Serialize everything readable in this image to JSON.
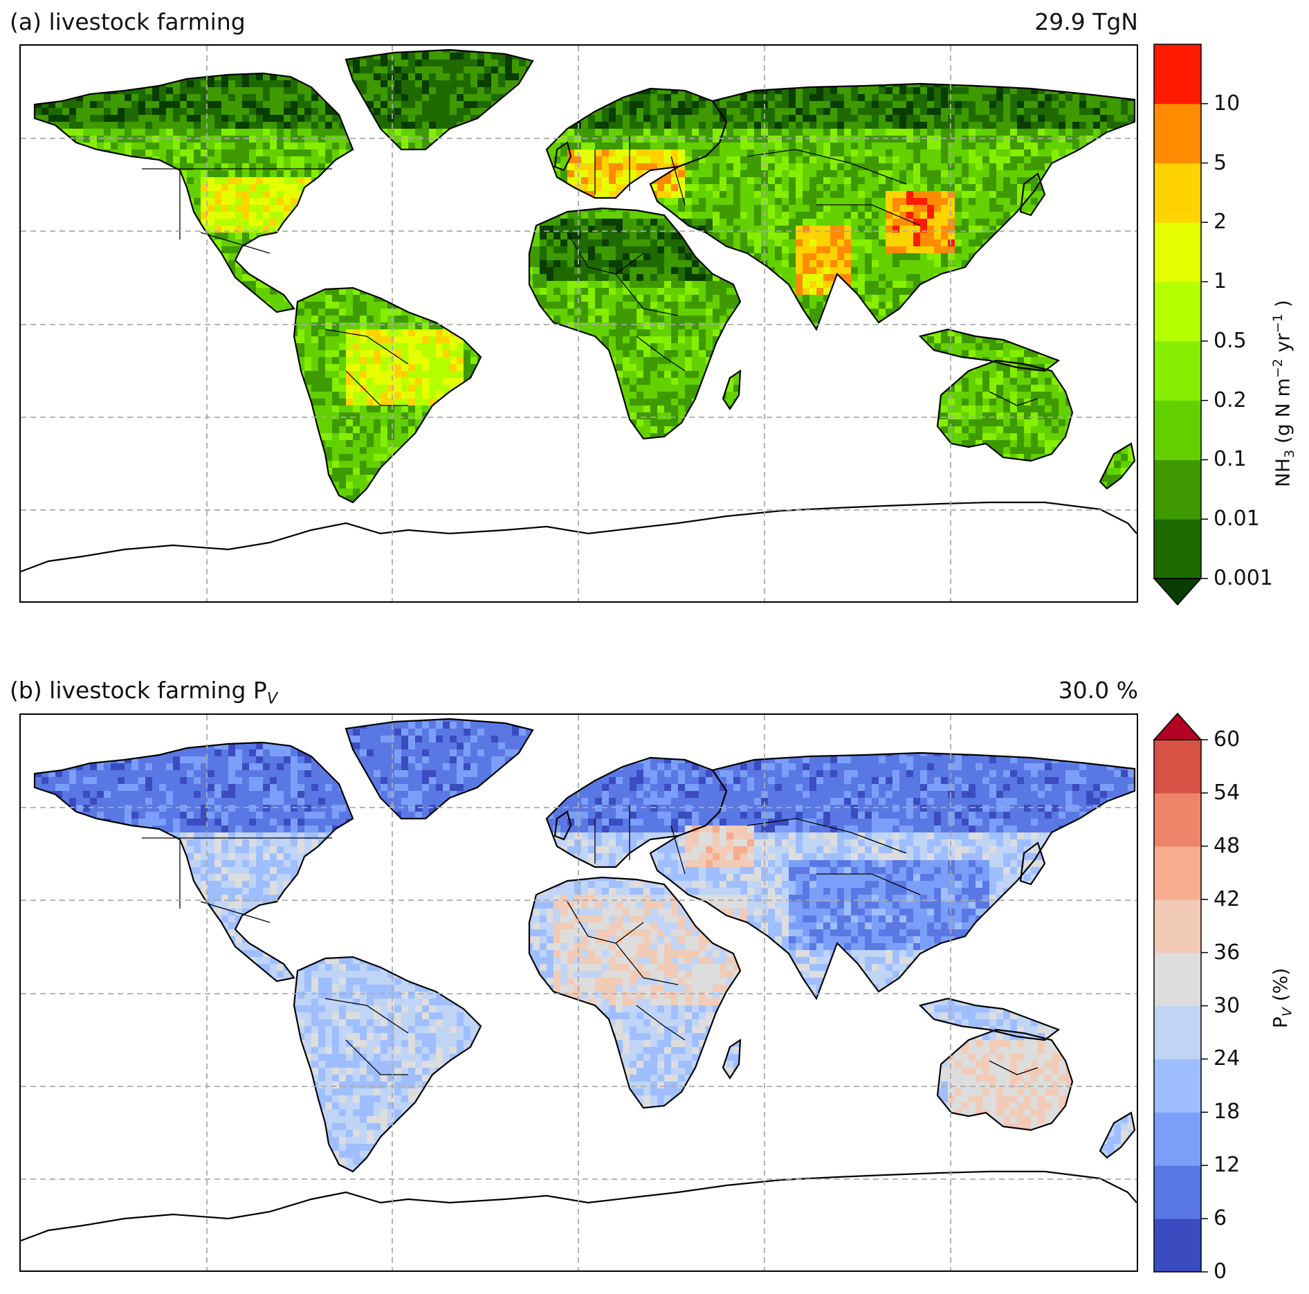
{
  "panels": [
    {
      "title": "(a) livestock farming",
      "total": "29.9 TgN",
      "colorbar": {
        "label_main": "NH",
        "label_sub": "3",
        "label_tail": " (g N m",
        "label_sup1": "−2",
        "label_mid": " yr",
        "label_sup2": "−1",
        "label_end": " )",
        "ticks": [
          "0.001",
          "0.01",
          "0.1",
          "0.2",
          "0.5",
          "1",
          "2",
          "5",
          "10"
        ],
        "colors": [
          "#1f6a00",
          "#3e9a00",
          "#63d000",
          "#86ee00",
          "#b4ff00",
          "#e6ff00",
          "#ffd300",
          "#ff8c00",
          "#ff1a00"
        ],
        "extend": "min",
        "extend_color": "#0a3d00"
      },
      "land_colors": [
        "#0a3d00",
        "#1f6a00",
        "#3e9a00",
        "#63d000",
        "#86ee00",
        "#b4ff00",
        "#e6ff00",
        "#ffd300",
        "#ff8c00",
        "#ff1a00"
      ]
    },
    {
      "title_main": "(b) livestock farming P",
      "title_sub": "V",
      "total": "30.0 %",
      "colorbar": {
        "label_main": "P",
        "label_sub": "V",
        "label_tail": " (%)",
        "ticks": [
          "0",
          "6",
          "12",
          "18",
          "24",
          "30",
          "36",
          "42",
          "48",
          "54",
          "60"
        ],
        "colors": [
          "#3b4cc0",
          "#5a78e4",
          "#7b9ff9",
          "#9ebeff",
          "#c0d4f5",
          "#dddddd",
          "#f2cbb7",
          "#f7ac8e",
          "#ee8468",
          "#d65244"
        ],
        "extend": "max",
        "extend_color": "#b40426"
      },
      "land_colors": [
        "#3b4cc0",
        "#5a78e4",
        "#7b9ff9",
        "#9ebeff",
        "#c0d4f5",
        "#dddddd",
        "#f2cbb7",
        "#f7ac8e",
        "#ee8468"
      ]
    }
  ]
}
